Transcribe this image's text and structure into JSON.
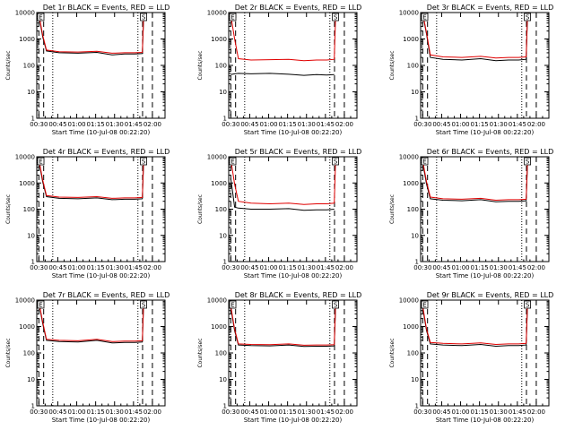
{
  "figure": {
    "xlabel": "Start Time (10-Jul-08 00:22:20)",
    "ylabel": "Counts/sec"
  },
  "colors": {
    "events": "#000000",
    "lld": "#e00000",
    "axis": "#000000"
  },
  "chart_data": [
    {
      "type": "line",
      "title": "Det 1r BLACK = Events, RED = LLD",
      "xlabel": "Start Time (10-Jul-08 00:22:20)",
      "ylabel": "Counts/sec",
      "x_ticks": [
        "00:30",
        "00:45",
        "01:00",
        "01:15",
        "01:30",
        "01:45",
        "02:00"
      ],
      "y_ticks": [
        "1",
        "10",
        "100",
        "1000",
        "10000"
      ],
      "y_scale": "log",
      "xlim_min": [
        22.33,
        124
      ],
      "ylim": [
        1,
        10000
      ],
      "marker_labels": [
        "E",
        "S"
      ],
      "series": [
        {
          "name": "Events",
          "x_min": [
            24,
            27,
            30,
            40,
            55,
            70,
            82,
            92,
            100,
            106,
            107,
            108
          ],
          "y": [
            8000,
            1200,
            350,
            300,
            290,
            310,
            250,
            270,
            270,
            280,
            6000,
            9000
          ]
        },
        {
          "name": "LLD",
          "x_min": [
            24,
            27,
            30,
            40,
            55,
            70,
            82,
            92,
            100,
            106,
            107,
            108
          ],
          "y": [
            9000,
            1400,
            380,
            330,
            320,
            340,
            290,
            300,
            300,
            310,
            7000,
            10000
          ]
        }
      ]
    },
    {
      "type": "line",
      "title": "Det 2r BLACK = Events, RED = LLD",
      "xlabel": "Start Time (10-Jul-08 00:22:20)",
      "ylabel": "Counts/sec",
      "x_ticks": [
        "00:30",
        "00:45",
        "01:00",
        "01:15",
        "01:30",
        "01:45",
        "02:00"
      ],
      "y_ticks": [
        "1",
        "10",
        "100",
        "1000",
        "10000"
      ],
      "y_scale": "log",
      "xlim_min": [
        22.33,
        124
      ],
      "ylim": [
        1,
        10000
      ],
      "marker_labels": [
        "E",
        "S"
      ],
      "series": [
        {
          "name": "Events",
          "x_min": [
            24,
            27,
            30,
            40,
            55,
            70,
            82,
            92,
            100,
            106
          ],
          "y": [
            45,
            48,
            50,
            48,
            50,
            46,
            42,
            45,
            43,
            45
          ]
        },
        {
          "name": "LLD",
          "x_min": [
            24,
            27,
            30,
            40,
            55,
            70,
            82,
            92,
            100,
            106,
            107,
            108
          ],
          "y": [
            8000,
            1000,
            180,
            160,
            165,
            170,
            150,
            160,
            160,
            170,
            6000,
            9000
          ]
        }
      ]
    },
    {
      "type": "line",
      "title": "Det 3r BLACK = Events, RED = LLD",
      "xlabel": "Start Time (10-Jul-08 00:22:20)",
      "ylabel": "Counts/sec",
      "x_ticks": [
        "00:30",
        "00:45",
        "01:00",
        "01:15",
        "01:30",
        "01:45",
        "02:00"
      ],
      "y_ticks": [
        "1",
        "10",
        "100",
        "1000",
        "10000"
      ],
      "y_scale": "log",
      "xlim_min": [
        22.33,
        124
      ],
      "ylim": [
        1,
        10000
      ],
      "marker_labels": [
        "E",
        "S"
      ],
      "series": [
        {
          "name": "Events",
          "x_min": [
            24,
            27,
            30,
            40,
            55,
            70,
            82,
            92,
            100,
            106,
            107,
            108
          ],
          "y": [
            9000,
            1500,
            200,
            170,
            160,
            180,
            150,
            160,
            160,
            170,
            7000,
            9500
          ]
        },
        {
          "name": "LLD",
          "x_min": [
            24,
            27,
            30,
            40,
            55,
            70,
            82,
            92,
            100,
            106,
            107,
            108
          ],
          "y": [
            9500,
            1700,
            250,
            210,
            200,
            220,
            190,
            200,
            200,
            210,
            8000,
            10000
          ]
        }
      ]
    },
    {
      "type": "line",
      "title": "Det 4r BLACK = Events, RED = LLD",
      "xlabel": "Start Time (10-Jul-08 00:22:20)",
      "ylabel": "Counts/sec",
      "x_ticks": [
        "00:30",
        "00:45",
        "01:00",
        "01:15",
        "01:30",
        "01:45",
        "02:00"
      ],
      "y_ticks": [
        "1",
        "10",
        "100",
        "1000",
        "10000"
      ],
      "y_scale": "log",
      "xlim_min": [
        22.33,
        124
      ],
      "ylim": [
        1,
        10000
      ],
      "marker_labels": [
        "E",
        "S"
      ],
      "series": [
        {
          "name": "Events",
          "x_min": [
            24,
            27,
            30,
            40,
            55,
            70,
            82,
            92,
            100,
            106,
            107,
            108
          ],
          "y": [
            7000,
            1100,
            300,
            260,
            250,
            270,
            230,
            240,
            240,
            250,
            6000,
            9000
          ]
        },
        {
          "name": "LLD",
          "x_min": [
            24,
            27,
            30,
            40,
            55,
            70,
            82,
            92,
            100,
            106,
            107,
            108
          ],
          "y": [
            8000,
            1300,
            330,
            290,
            280,
            300,
            260,
            270,
            270,
            280,
            7000,
            10000
          ]
        }
      ]
    },
    {
      "type": "line",
      "title": "Det 5r BLACK = Events, RED = LLD",
      "xlabel": "Start Time (10-Jul-08 00:22:20)",
      "ylabel": "Counts/sec",
      "x_ticks": [
        "00:30",
        "00:45",
        "01:00",
        "01:15",
        "01:30",
        "01:45",
        "02:00"
      ],
      "y_ticks": [
        "1",
        "10",
        "100",
        "1000",
        "10000"
      ],
      "y_scale": "log",
      "xlim_min": [
        22.33,
        124
      ],
      "ylim": [
        1,
        10000
      ],
      "marker_labels": [
        "E",
        "S"
      ],
      "series": [
        {
          "name": "Events",
          "x_min": [
            24,
            27,
            30,
            40,
            55,
            70,
            82,
            92,
            100,
            106
          ],
          "y": [
            1500,
            120,
            110,
            100,
            100,
            105,
            90,
            95,
            95,
            100
          ]
        },
        {
          "name": "LLD",
          "x_min": [
            24,
            27,
            30,
            40,
            55,
            70,
            82,
            92,
            100,
            106,
            107,
            108
          ],
          "y": [
            8000,
            900,
            200,
            170,
            160,
            170,
            150,
            160,
            160,
            170,
            6000,
            9000
          ]
        }
      ]
    },
    {
      "type": "line",
      "title": "Det 6r BLACK = Events, RED = LLD",
      "xlabel": "Start Time (10-Jul-08 00:22:20)",
      "ylabel": "Counts/sec",
      "x_ticks": [
        "00:30",
        "00:45",
        "01:00",
        "01:15",
        "01:30",
        "01:45",
        "02:00"
      ],
      "y_ticks": [
        "1",
        "10",
        "100",
        "1000",
        "10000"
      ],
      "y_scale": "log",
      "xlim_min": [
        22.33,
        124
      ],
      "ylim": [
        1,
        10000
      ],
      "marker_labels": [
        "E",
        "S"
      ],
      "series": [
        {
          "name": "Events",
          "x_min": [
            24,
            27,
            30,
            40,
            55,
            70,
            82,
            92,
            100,
            106,
            107,
            108
          ],
          "y": [
            6000,
            900,
            250,
            220,
            210,
            230,
            190,
            200,
            200,
            210,
            5000,
            8000
          ]
        },
        {
          "name": "LLD",
          "x_min": [
            24,
            27,
            30,
            40,
            55,
            70,
            82,
            92,
            100,
            106,
            107,
            108
          ],
          "y": [
            7000,
            1100,
            290,
            250,
            240,
            260,
            220,
            230,
            230,
            240,
            6000,
            9000
          ]
        }
      ]
    },
    {
      "type": "line",
      "title": "Det 7r BLACK = Events, RED = LLD",
      "xlabel": "Start Time (10-Jul-08 00:22:20)",
      "ylabel": "Counts/sec",
      "x_ticks": [
        "00:30",
        "00:45",
        "01:00",
        "01:15",
        "01:30",
        "01:45",
        "02:00"
      ],
      "y_ticks": [
        "1",
        "10",
        "100",
        "1000",
        "10000"
      ],
      "y_scale": "log",
      "xlim_min": [
        22.33,
        124
      ],
      "ylim": [
        1,
        10000
      ],
      "marker_labels": [
        "E",
        "S"
      ],
      "series": [
        {
          "name": "Events",
          "x_min": [
            24,
            27,
            30,
            40,
            55,
            70,
            82,
            92,
            100,
            106,
            107,
            108
          ],
          "y": [
            8000,
            1300,
            300,
            270,
            260,
            300,
            240,
            250,
            250,
            260,
            7000,
            10000
          ]
        },
        {
          "name": "LLD",
          "x_min": [
            24,
            27,
            30,
            40,
            55,
            70,
            82,
            92,
            100,
            106,
            107,
            108
          ],
          "y": [
            9000,
            1500,
            330,
            300,
            290,
            330,
            270,
            280,
            280,
            290,
            8000,
            10000
          ]
        }
      ]
    },
    {
      "type": "line",
      "title": "Det 8r BLACK = Events, RED = LLD",
      "xlabel": "Start Time (10-Jul-08 00:22:20)",
      "ylabel": "Counts/sec",
      "x_ticks": [
        "00:30",
        "00:45",
        "01:00",
        "01:15",
        "01:30",
        "01:45",
        "02:00"
      ],
      "y_ticks": [
        "1",
        "10",
        "100",
        "1000",
        "10000"
      ],
      "y_scale": "log",
      "xlim_min": [
        22.33,
        124
      ],
      "ylim": [
        1,
        10000
      ],
      "marker_labels": [
        "E",
        "S"
      ],
      "series": [
        {
          "name": "Events",
          "x_min": [
            24,
            27,
            30,
            40,
            55,
            70,
            82,
            92,
            100,
            106,
            107,
            108
          ],
          "y": [
            5000,
            700,
            200,
            190,
            185,
            200,
            175,
            180,
            180,
            185,
            5000,
            8000
          ]
        },
        {
          "name": "LLD",
          "x_min": [
            24,
            27,
            30,
            40,
            55,
            70,
            82,
            92,
            100,
            106,
            107,
            108
          ],
          "y": [
            6000,
            800,
            220,
            210,
            205,
            220,
            195,
            200,
            200,
            205,
            6000,
            9000
          ]
        }
      ]
    },
    {
      "type": "line",
      "title": "Det 9r BLACK = Events, RED = LLD",
      "xlabel": "Start Time (10-Jul-08 00:22:20)",
      "ylabel": "Counts/sec",
      "x_ticks": [
        "00:30",
        "00:45",
        "01:00",
        "01:15",
        "01:30",
        "01:45",
        "02:00"
      ],
      "y_ticks": [
        "1",
        "10",
        "100",
        "1000",
        "10000"
      ],
      "y_scale": "log",
      "xlim_min": [
        22.33,
        124
      ],
      "ylim": [
        1,
        10000
      ],
      "marker_labels": [
        "E",
        "S"
      ],
      "series": [
        {
          "name": "Events",
          "x_min": [
            24,
            27,
            30,
            40,
            55,
            70,
            82,
            92,
            100,
            106,
            107,
            108
          ],
          "y": [
            5000,
            700,
            220,
            200,
            190,
            210,
            180,
            190,
            190,
            200,
            6000,
            9000
          ]
        },
        {
          "name": "LLD",
          "x_min": [
            24,
            27,
            30,
            40,
            55,
            70,
            82,
            92,
            100,
            106,
            107,
            108
          ],
          "y": [
            6000,
            800,
            250,
            230,
            220,
            240,
            210,
            220,
            220,
            230,
            7000,
            10000
          ]
        }
      ]
    }
  ]
}
